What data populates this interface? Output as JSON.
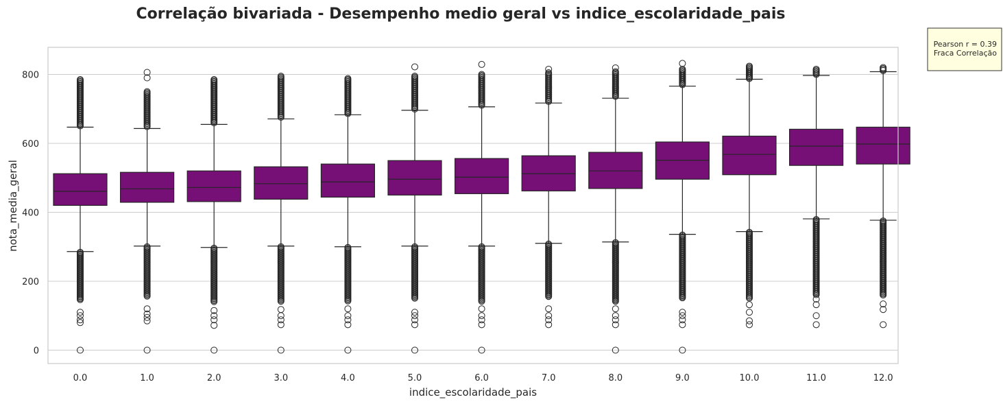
{
  "chart_data": {
    "type": "box",
    "title": "Correlação bivariada - Desempenho medio geral vs indice_escolaridade_pais",
    "xlabel": "indice_escolaridade_pais",
    "ylabel": "nota_media_geral",
    "ylim": [
      -40,
      875
    ],
    "yticks": [
      0,
      200,
      400,
      600,
      800
    ],
    "grid": true,
    "box_color": "#760f76",
    "annotation": {
      "line1": "Pearson r = 0.39",
      "line2": "Fraca Correlação",
      "background": "#ffffe0"
    },
    "categories": [
      "0.0",
      "1.0",
      "2.0",
      "3.0",
      "4.0",
      "5.0",
      "6.0",
      "7.0",
      "8.0",
      "9.0",
      "10.0",
      "11.0",
      "12.0"
    ],
    "boxes": [
      {
        "whislo": 286,
        "q1": 420,
        "med": 461,
        "q3": 512,
        "whishi": 647,
        "high_fliers": [
          650,
          785
        ],
        "low_fliers": [
          145,
          284
        ],
        "sparse_low": [
          110,
          100,
          88,
          80
        ],
        "sparse_high": [],
        "zero": true
      },
      {
        "whislo": 302,
        "q1": 429,
        "med": 468,
        "q3": 516,
        "whishi": 643,
        "high_fliers": [
          647,
          750
        ],
        "low_fliers": [
          155,
          300
        ],
        "sparse_low": [
          120,
          105,
          95,
          85
        ],
        "sparse_high": [
          790,
          806
        ],
        "zero": true
      },
      {
        "whislo": 298,
        "q1": 431,
        "med": 472,
        "q3": 520,
        "whishi": 655,
        "high_fliers": [
          658,
          785
        ],
        "low_fliers": [
          140,
          296
        ],
        "sparse_low": [
          115,
          100,
          88,
          72
        ],
        "sparse_high": [],
        "zero": true
      },
      {
        "whislo": 302,
        "q1": 438,
        "med": 483,
        "q3": 532,
        "whishi": 671,
        "high_fliers": [
          674,
          795
        ],
        "low_fliers": [
          140,
          300
        ],
        "sparse_low": [
          118,
          100,
          88,
          74
        ],
        "sparse_high": [],
        "zero": true
      },
      {
        "whislo": 300,
        "q1": 444,
        "med": 488,
        "q3": 540,
        "whishi": 683,
        "high_fliers": [
          686,
          788
        ],
        "low_fliers": [
          140,
          298
        ],
        "sparse_low": [
          120,
          100,
          88,
          74
        ],
        "sparse_high": [],
        "zero": true
      },
      {
        "whislo": 302,
        "q1": 450,
        "med": 496,
        "q3": 550,
        "whishi": 696,
        "high_fliers": [
          699,
          795
        ],
        "low_fliers": [
          148,
          300
        ],
        "sparse_low": [
          110,
          100,
          88,
          74
        ],
        "sparse_high": [
          822
        ],
        "zero": true
      },
      {
        "whislo": 302,
        "q1": 454,
        "med": 502,
        "q3": 556,
        "whishi": 706,
        "high_fliers": [
          709,
          800
        ],
        "low_fliers": [
          140,
          300
        ],
        "sparse_low": [
          120,
          100,
          88,
          74
        ],
        "sparse_high": [
          829
        ],
        "zero": true
      },
      {
        "whislo": 310,
        "q1": 462,
        "med": 512,
        "q3": 564,
        "whishi": 717,
        "high_fliers": [
          720,
          805
        ],
        "low_fliers": [
          155,
          308
        ],
        "sparse_low": [
          120,
          100,
          88,
          74
        ],
        "sparse_high": [
          815
        ],
        "zero": false
      },
      {
        "whislo": 314,
        "q1": 469,
        "med": 520,
        "q3": 574,
        "whishi": 731,
        "high_fliers": [
          734,
          808
        ],
        "low_fliers": [
          140,
          312
        ],
        "sparse_low": [
          120,
          100,
          88,
          74
        ],
        "sparse_high": [
          819
        ],
        "zero": true
      },
      {
        "whislo": 336,
        "q1": 496,
        "med": 551,
        "q3": 604,
        "whishi": 766,
        "high_fliers": [
          769,
          815
        ],
        "low_fliers": [
          150,
          334
        ],
        "sparse_low": [
          110,
          100,
          88,
          74
        ],
        "sparse_high": [
          832
        ],
        "zero": true
      },
      {
        "whislo": 344,
        "q1": 509,
        "med": 568,
        "q3": 621,
        "whishi": 786,
        "high_fliers": [
          788,
          824
        ],
        "low_fliers": [
          150,
          342
        ],
        "sparse_low": [
          132,
          110,
          85,
          74
        ],
        "sparse_high": [],
        "zero": false
      },
      {
        "whislo": 381,
        "q1": 536,
        "med": 592,
        "q3": 641,
        "whishi": 797,
        "high_fliers": [
          799,
          815
        ],
        "low_fliers": [
          160,
          379
        ],
        "sparse_low": [
          148,
          132,
          100,
          74
        ],
        "sparse_high": [],
        "zero": false
      },
      {
        "whislo": 377,
        "q1": 540,
        "med": 598,
        "q3": 647,
        "whishi": 808,
        "high_fliers": [
          810,
          820
        ],
        "low_fliers": [
          160,
          375
        ],
        "sparse_low": [
          134,
          118,
          74
        ],
        "sparse_high": [],
        "zero": false
      }
    ]
  }
}
